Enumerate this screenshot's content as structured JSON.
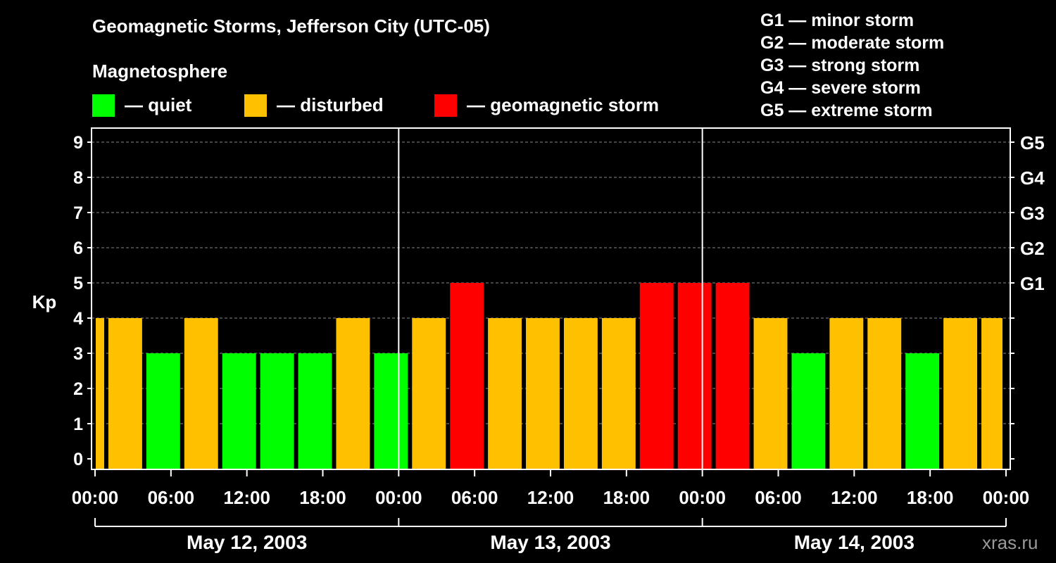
{
  "header": {
    "title": "Geomagnetic Storms, Jefferson City (UTC-05)",
    "magnetosphere_label": "Magnetosphere"
  },
  "legend": {
    "items": [
      {
        "label": "— quiet",
        "color": "#00ff00"
      },
      {
        "label": "— disturbed",
        "color": "#ffc000"
      },
      {
        "label": "— geomagnetic storm",
        "color": "#ff0000"
      }
    ]
  },
  "storm_scale": [
    "G1 — minor storm",
    "G2 — moderate storm",
    "G3 — strong storm",
    "G4 — severe storm",
    "G5 — extreme storm"
  ],
  "watermark": "xras.ru",
  "chart_data": {
    "type": "bar",
    "ylabel": "Kp",
    "ylim": [
      0,
      9
    ],
    "yticks": [
      "0",
      "1",
      "2",
      "3",
      "4",
      "5",
      "6",
      "7",
      "8",
      "9"
    ],
    "right_axis_labels": [
      {
        "kp": 5,
        "label": "G1"
      },
      {
        "kp": 6,
        "label": "G2"
      },
      {
        "kp": 7,
        "label": "G3"
      },
      {
        "kp": 8,
        "label": "G4"
      },
      {
        "kp": 9,
        "label": "G5"
      }
    ],
    "x_range_hours": [
      -1.0,
      71.0
    ],
    "x_ticks": [
      {
        "h": -1,
        "label": "00:00"
      },
      {
        "h": 5,
        "label": "06:00"
      },
      {
        "h": 11,
        "label": "12:00"
      },
      {
        "h": 17,
        "label": "18:00"
      },
      {
        "h": 23,
        "label": "00:00"
      },
      {
        "h": 29,
        "label": "06:00"
      },
      {
        "h": 35,
        "label": "12:00"
      },
      {
        "h": 41,
        "label": "18:00"
      },
      {
        "h": 47,
        "label": "00:00"
      },
      {
        "h": 53,
        "label": "06:00"
      },
      {
        "h": 59,
        "label": "12:00"
      },
      {
        "h": 65,
        "label": "18:00"
      },
      {
        "h": 71,
        "label": "00:00"
      }
    ],
    "day_separators_hours": [
      23,
      47
    ],
    "days": [
      {
        "label": "May 12, 2003",
        "start": -1,
        "end": 23
      },
      {
        "label": "May 13, 2003",
        "start": 23,
        "end": 47
      },
      {
        "label": "May 14, 2003",
        "start": 47,
        "end": 71
      }
    ],
    "grid": "horizontal dashed",
    "bars": [
      {
        "start": -1,
        "end": 0,
        "kp": 4,
        "level": "disturbed"
      },
      {
        "start": 0,
        "end": 3,
        "kp": 4,
        "level": "disturbed"
      },
      {
        "start": 3,
        "end": 6,
        "kp": 3,
        "level": "quiet"
      },
      {
        "start": 6,
        "end": 9,
        "kp": 4,
        "level": "disturbed"
      },
      {
        "start": 9,
        "end": 12,
        "kp": 3,
        "level": "quiet"
      },
      {
        "start": 12,
        "end": 15,
        "kp": 3,
        "level": "quiet"
      },
      {
        "start": 15,
        "end": 18,
        "kp": 3,
        "level": "quiet"
      },
      {
        "start": 18,
        "end": 21,
        "kp": 4,
        "level": "disturbed"
      },
      {
        "start": 21,
        "end": 24,
        "kp": 3,
        "level": "quiet"
      },
      {
        "start": 24,
        "end": 27,
        "kp": 4,
        "level": "disturbed"
      },
      {
        "start": 27,
        "end": 30,
        "kp": 5,
        "level": "storm"
      },
      {
        "start": 30,
        "end": 33,
        "kp": 4,
        "level": "disturbed"
      },
      {
        "start": 33,
        "end": 36,
        "kp": 4,
        "level": "disturbed"
      },
      {
        "start": 36,
        "end": 39,
        "kp": 4,
        "level": "disturbed"
      },
      {
        "start": 39,
        "end": 42,
        "kp": 4,
        "level": "disturbed"
      },
      {
        "start": 42,
        "end": 45,
        "kp": 5,
        "level": "storm"
      },
      {
        "start": 45,
        "end": 48,
        "kp": 5,
        "level": "storm"
      },
      {
        "start": 48,
        "end": 51,
        "kp": 5,
        "level": "storm"
      },
      {
        "start": 51,
        "end": 54,
        "kp": 4,
        "level": "disturbed"
      },
      {
        "start": 54,
        "end": 57,
        "kp": 3,
        "level": "quiet"
      },
      {
        "start": 57,
        "end": 60,
        "kp": 4,
        "level": "disturbed"
      },
      {
        "start": 60,
        "end": 63,
        "kp": 4,
        "level": "disturbed"
      },
      {
        "start": 63,
        "end": 66,
        "kp": 3,
        "level": "quiet"
      },
      {
        "start": 66,
        "end": 69,
        "kp": 4,
        "level": "disturbed"
      },
      {
        "start": 69,
        "end": 71,
        "kp": 4,
        "level": "disturbed"
      }
    ],
    "level_colors": {
      "quiet": "#00ff00",
      "disturbed": "#ffc000",
      "storm": "#ff0000"
    }
  }
}
